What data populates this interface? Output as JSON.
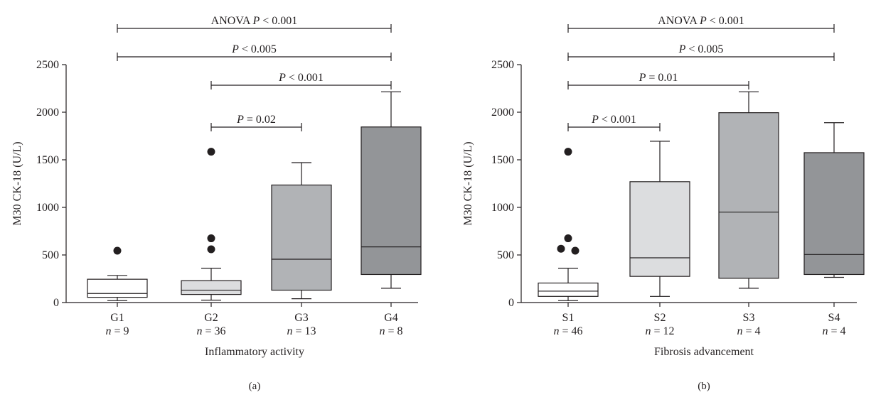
{
  "chart_data": [
    {
      "type": "box",
      "panel_label": "(a)",
      "ylabel": "M30 CK-18 (U/L)",
      "xlabel": "Inflammatory activity",
      "ylim": [
        0,
        2500
      ],
      "yticks": [
        0,
        500,
        1000,
        1500,
        2000,
        2500
      ],
      "categories": [
        {
          "label": "G1",
          "n_label": "n = 9",
          "min": 20,
          "q1": 55,
          "median": 95,
          "q3": 245,
          "max": 285,
          "outliers": [
            545
          ],
          "color": "#ffffff"
        },
        {
          "label": "G2",
          "n_label": "n = 36",
          "min": 25,
          "q1": 85,
          "median": 130,
          "q3": 230,
          "max": 360,
          "outliers": [
            560,
            675,
            1585
          ],
          "color": "#dcdddf"
        },
        {
          "label": "G3",
          "n_label": "n = 13",
          "min": 40,
          "q1": 130,
          "median": 455,
          "q3": 1235,
          "max": 1470,
          "outliers": [],
          "color": "#b1b3b6"
        },
        {
          "label": "G4",
          "n_label": "n = 8",
          "min": 150,
          "q1": 295,
          "median": 585,
          "q3": 1845,
          "max": 2215,
          "outliers": [],
          "color": "#939598"
        }
      ],
      "comparisons": [
        {
          "from": 0,
          "to": 3,
          "label": "ANOVA P < 0.001"
        },
        {
          "from": 0,
          "to": 3,
          "label": "P < 0.005"
        },
        {
          "from": 1,
          "to": 3,
          "label": "P < 0.001"
        },
        {
          "from": 1,
          "to": 2,
          "label": "P = 0.02"
        }
      ]
    },
    {
      "type": "box",
      "panel_label": "(b)",
      "ylabel": "M30 CK-18 (U/L)",
      "xlabel": "Fibrosis advancement",
      "ylim": [
        0,
        2500
      ],
      "yticks": [
        0,
        500,
        1000,
        1500,
        2000,
        2500
      ],
      "categories": [
        {
          "label": "S1",
          "n_label": "n = 46",
          "min": 20,
          "q1": 65,
          "median": 120,
          "q3": 205,
          "max": 360,
          "outliers": [
            545,
            565,
            675,
            1585
          ],
          "color": "#ffffff"
        },
        {
          "label": "S2",
          "n_label": "n = 12",
          "min": 65,
          "q1": 275,
          "median": 470,
          "q3": 1270,
          "max": 1695,
          "outliers": [],
          "color": "#dcdddf"
        },
        {
          "label": "S3",
          "n_label": "n = 4",
          "min": 150,
          "q1": 255,
          "median": 950,
          "q3": 1995,
          "max": 2215,
          "outliers": [],
          "color": "#b1b3b6"
        },
        {
          "label": "S4",
          "n_label": "n = 4",
          "min": 265,
          "q1": 295,
          "median": 505,
          "q3": 1575,
          "max": 1890,
          "outliers": [],
          "color": "#939598"
        }
      ],
      "comparisons": [
        {
          "from": 0,
          "to": 3,
          "label": "ANOVA P < 0.001"
        },
        {
          "from": 0,
          "to": 3,
          "label": "P < 0.005"
        },
        {
          "from": 0,
          "to": 2,
          "label": "P = 0.01"
        },
        {
          "from": 0,
          "to": 1,
          "label": "P < 0.001"
        }
      ]
    }
  ]
}
